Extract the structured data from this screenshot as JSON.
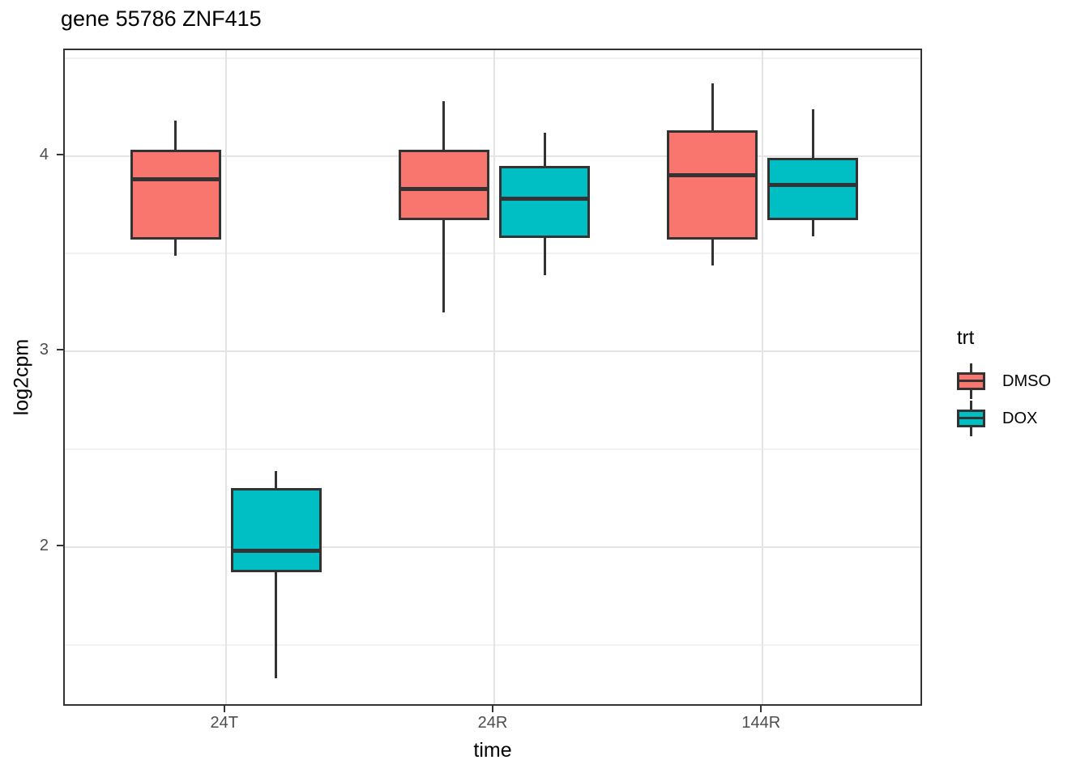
{
  "chart_data": {
    "type": "boxplot",
    "title": "gene 55786 ZNF415",
    "xlabel": "time",
    "ylabel": "log2cpm",
    "categories": [
      "24T",
      "24R",
      "144R"
    ],
    "y_major_ticks": [
      2,
      3,
      4
    ],
    "y_minor_gridlines": [
      1.5,
      2.5,
      3.5,
      4.5
    ],
    "ylim": [
      1.18,
      4.54
    ],
    "grid": "major-and-minor, light gray on white, theme_bw panel border",
    "legend_position": "right",
    "legend": {
      "title": "trt",
      "entries": [
        {
          "label": "DMSO",
          "color": "#F8766D"
        },
        {
          "label": "DOX",
          "color": "#00BFC4"
        }
      ]
    },
    "series": [
      {
        "name": "DMSO",
        "color": "#F8766D",
        "boxes": [
          {
            "category": "24T",
            "min": 3.49,
            "q1": 3.57,
            "median": 3.88,
            "q3": 4.03,
            "max": 4.18
          },
          {
            "category": "24R",
            "min": 3.2,
            "q1": 3.67,
            "median": 3.83,
            "q3": 4.03,
            "max": 4.28
          },
          {
            "category": "144R",
            "min": 3.44,
            "q1": 3.57,
            "median": 3.9,
            "q3": 4.13,
            "max": 4.37
          }
        ]
      },
      {
        "name": "DOX",
        "color": "#00BFC4",
        "boxes": [
          {
            "category": "24T",
            "min": 1.33,
            "q1": 1.87,
            "median": 1.98,
            "q3": 2.3,
            "max": 2.39
          },
          {
            "category": "24R",
            "min": 3.39,
            "q1": 3.58,
            "median": 3.78,
            "q3": 3.95,
            "max": 4.12
          },
          {
            "category": "144R",
            "min": 3.59,
            "q1": 3.67,
            "median": 3.85,
            "q3": 3.99,
            "max": 4.24
          }
        ]
      }
    ]
  },
  "colors": {
    "box_outline": "#333333",
    "panel_border": "#333333",
    "grid_major": "#e4e4e4",
    "grid_minor": "#f1f1f1",
    "tick_label": "#4d4d4d",
    "text": "#000000",
    "background": "#ffffff"
  }
}
